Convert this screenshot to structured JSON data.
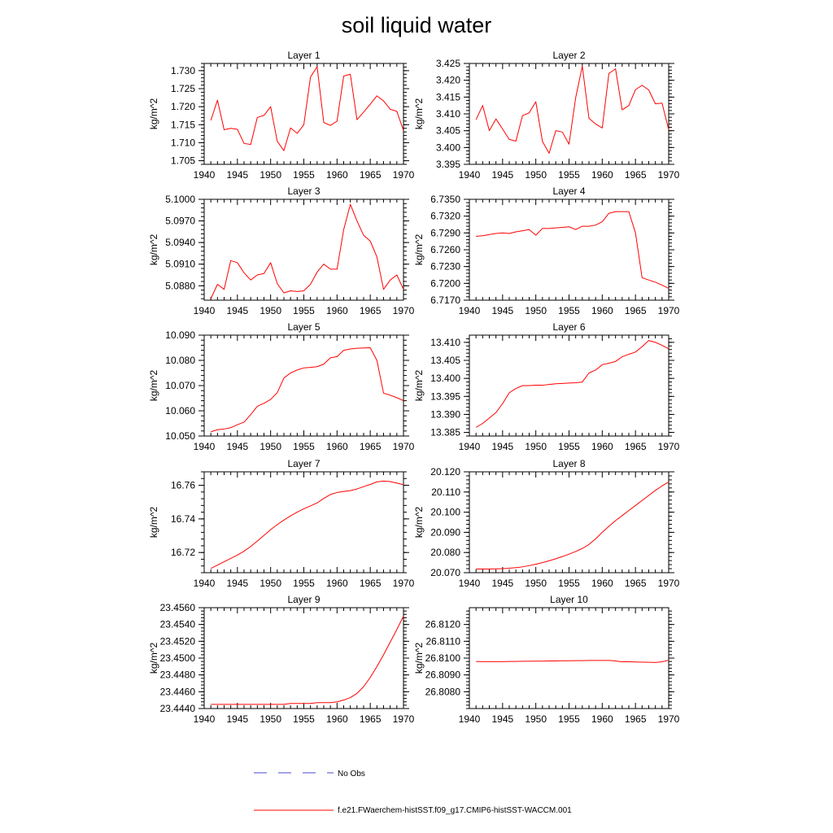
{
  "figure": {
    "title": "soil liquid water"
  },
  "chart_data": [
    {
      "type": "line",
      "title": "Layer 1",
      "ylabel": "kg/m^2",
      "xlim": [
        1940,
        1970
      ],
      "ylim": [
        1.704,
        1.732
      ],
      "xticks": [
        1940,
        1945,
        1950,
        1955,
        1960,
        1965,
        1970
      ],
      "yticks": [
        1.705,
        1.71,
        1.715,
        1.72,
        1.725,
        1.73
      ],
      "yticklabels": [
        "1.705",
        "1.710",
        "1.715",
        "1.720",
        "1.725",
        "1.730"
      ],
      "x": [
        1941,
        1942,
        1943,
        1944,
        1945,
        1946,
        1947,
        1948,
        1949,
        1950,
        1951,
        1952,
        1953,
        1954,
        1955,
        1956,
        1957,
        1958,
        1959,
        1960,
        1961,
        1962,
        1963,
        1964,
        1965,
        1966,
        1967,
        1968,
        1969,
        1970
      ],
      "series": [
        {
          "name": "f.e21.FWaerchem-histSST.f09_g17.CMIP6-histSST-WACCM.001",
          "color": "#ff0000",
          "values": [
            1.7162,
            1.7218,
            1.7136,
            1.714,
            1.7137,
            1.7098,
            1.7095,
            1.717,
            1.7176,
            1.72,
            1.7104,
            1.7078,
            1.7141,
            1.7126,
            1.715,
            1.7282,
            1.7311,
            1.7156,
            1.7148,
            1.716,
            1.7285,
            1.729,
            1.7164,
            1.7185,
            1.7207,
            1.723,
            1.7216,
            1.7193,
            1.7187,
            1.7134
          ]
        }
      ]
    },
    {
      "type": "line",
      "title": "Layer 2",
      "ylabel": "kg/m^2",
      "xlim": [
        1940,
        1970
      ],
      "ylim": [
        3.395,
        3.425
      ],
      "xticks": [
        1940,
        1945,
        1950,
        1955,
        1960,
        1965,
        1970
      ],
      "yticks": [
        3.395,
        3.4,
        3.405,
        3.41,
        3.415,
        3.42,
        3.425
      ],
      "yticklabels": [
        "3.395",
        "3.400",
        "3.405",
        "3.410",
        "3.415",
        "3.420",
        "3.425"
      ],
      "x": [
        1941,
        1942,
        1943,
        1944,
        1945,
        1946,
        1947,
        1948,
        1949,
        1950,
        1951,
        1952,
        1953,
        1954,
        1955,
        1956,
        1957,
        1958,
        1959,
        1960,
        1961,
        1962,
        1963,
        1964,
        1965,
        1966,
        1967,
        1968,
        1969,
        1970
      ],
      "series": [
        {
          "name": "f.e21.FWaerchem-histSST.f09_g17.CMIP6-histSST-WACCM.001",
          "color": "#ff0000",
          "values": [
            3.4083,
            3.4125,
            3.405,
            3.4085,
            3.4055,
            3.4024,
            3.4019,
            3.4095,
            3.4103,
            3.4136,
            3.4018,
            3.3983,
            3.405,
            3.4046,
            3.401,
            3.4148,
            3.4242,
            3.4087,
            3.407,
            3.4058,
            3.422,
            3.4234,
            3.4112,
            3.4125,
            3.4172,
            3.4185,
            3.4171,
            3.413,
            3.4132,
            3.4053
          ]
        }
      ]
    },
    {
      "type": "line",
      "title": "Layer 3",
      "ylabel": "kg/m^2",
      "xlim": [
        1940,
        1970
      ],
      "ylim": [
        5.086,
        5.1
      ],
      "xticks": [
        1940,
        1945,
        1950,
        1955,
        1960,
        1965,
        1970
      ],
      "yticks": [
        5.088,
        5.091,
        5.094,
        5.097,
        5.1
      ],
      "yticklabels": [
        "5.0880",
        "5.0910",
        "5.0940",
        "5.0970",
        "5.1000"
      ],
      "x": [
        1941,
        1942,
        1943,
        1944,
        1945,
        1946,
        1947,
        1948,
        1949,
        1950,
        1951,
        1952,
        1953,
        1954,
        1955,
        1956,
        1957,
        1958,
        1959,
        1960,
        1961,
        1962,
        1963,
        1964,
        1965,
        1966,
        1967,
        1968,
        1969,
        1970
      ],
      "series": [
        {
          "name": "f.e21.FWaerchem-histSST.f09_g17.CMIP6-histSST-WACCM.001",
          "color": "#ff0000",
          "values": [
            5.0862,
            5.0882,
            5.0875,
            5.0915,
            5.0912,
            5.0898,
            5.0888,
            5.0895,
            5.0897,
            5.0912,
            5.0883,
            5.087,
            5.0873,
            5.0872,
            5.0873,
            5.0882,
            5.0899,
            5.091,
            5.0903,
            5.0903,
            5.0958,
            5.0993,
            5.097,
            5.095,
            5.0942,
            5.092,
            5.0875,
            5.0888,
            5.0895,
            5.0875
          ]
        }
      ]
    },
    {
      "type": "line",
      "title": "Layer 4",
      "ylabel": "kg/m^2",
      "xlim": [
        1940,
        1970
      ],
      "ylim": [
        6.717,
        6.735
      ],
      "xticks": [
        1940,
        1945,
        1950,
        1955,
        1960,
        1965,
        1970
      ],
      "yticks": [
        6.717,
        6.72,
        6.723,
        6.726,
        6.729,
        6.732,
        6.735
      ],
      "yticklabels": [
        "6.7170",
        "6.7200",
        "6.7230",
        "6.7260",
        "6.7290",
        "6.7320",
        "6.7350"
      ],
      "x": [
        1941,
        1942,
        1943,
        1944,
        1945,
        1946,
        1947,
        1948,
        1949,
        1950,
        1951,
        1952,
        1953,
        1954,
        1955,
        1956,
        1957,
        1958,
        1959,
        1960,
        1961,
        1962,
        1963,
        1964,
        1965,
        1966,
        1967,
        1968,
        1969,
        1970
      ],
      "series": [
        {
          "name": "f.e21.FWaerchem-histSST.f09_g17.CMIP6-histSST-WACCM.001",
          "color": "#ff0000",
          "values": [
            6.7284,
            6.7285,
            6.7287,
            6.7289,
            6.729,
            6.7289,
            6.7292,
            6.7294,
            6.7296,
            6.7286,
            6.7298,
            6.7298,
            6.7299,
            6.73,
            6.7301,
            6.7296,
            6.7302,
            6.7302,
            6.7304,
            6.731,
            6.7325,
            6.7328,
            6.7328,
            6.7328,
            6.729,
            6.721,
            6.7206,
            6.7202,
            6.7197,
            6.7191
          ]
        }
      ]
    },
    {
      "type": "line",
      "title": "Layer 5",
      "ylabel": "kg/m^2",
      "xlim": [
        1940,
        1970
      ],
      "ylim": [
        10.05,
        10.09
      ],
      "xticks": [
        1940,
        1945,
        1950,
        1955,
        1960,
        1965,
        1970
      ],
      "yticks": [
        10.05,
        10.06,
        10.07,
        10.08,
        10.09
      ],
      "yticklabels": [
        "10.050",
        "10.060",
        "10.070",
        "10.080",
        "10.090"
      ],
      "x": [
        1941,
        1942,
        1943,
        1944,
        1945,
        1946,
        1947,
        1948,
        1949,
        1950,
        1951,
        1952,
        1953,
        1954,
        1955,
        1956,
        1957,
        1958,
        1959,
        1960,
        1961,
        1962,
        1963,
        1964,
        1965,
        1966,
        1967,
        1968,
        1969,
        1970
      ],
      "series": [
        {
          "name": "f.e21.FWaerchem-histSST.f09_g17.CMIP6-histSST-WACCM.001",
          "color": "#ff0000",
          "values": [
            10.0517,
            10.0525,
            10.0528,
            10.0533,
            10.0545,
            10.0555,
            10.0585,
            10.0618,
            10.063,
            10.0645,
            10.0672,
            10.073,
            10.075,
            10.0762,
            10.077,
            10.0772,
            10.0775,
            10.0785,
            10.081,
            10.0815,
            10.084,
            10.0845,
            10.0848,
            10.0849,
            10.085,
            10.08,
            10.067,
            10.0662,
            10.0652,
            10.064
          ]
        }
      ]
    },
    {
      "type": "line",
      "title": "Layer 6",
      "ylabel": "kg/m^2",
      "xlim": [
        1940,
        1970
      ],
      "ylim": [
        13.384,
        13.412
      ],
      "xticks": [
        1940,
        1945,
        1950,
        1955,
        1960,
        1965,
        1970
      ],
      "yticks": [
        13.385,
        13.39,
        13.395,
        13.4,
        13.405,
        13.41
      ],
      "yticklabels": [
        "13.385",
        "13.390",
        "13.395",
        "13.400",
        "13.405",
        "13.410"
      ],
      "x": [
        1941,
        1942,
        1943,
        1944,
        1945,
        1946,
        1947,
        1948,
        1949,
        1950,
        1951,
        1952,
        1953,
        1954,
        1955,
        1956,
        1957,
        1958,
        1959,
        1960,
        1961,
        1962,
        1963,
        1964,
        1965,
        1966,
        1967,
        1968,
        1969,
        1970
      ],
      "series": [
        {
          "name": "f.e21.FWaerchem-histSST.f09_g17.CMIP6-histSST-WACCM.001",
          "color": "#ff0000",
          "values": [
            13.3864,
            13.3875,
            13.389,
            13.3905,
            13.393,
            13.396,
            13.3972,
            13.398,
            13.398,
            13.3981,
            13.3981,
            13.3983,
            13.3985,
            13.3986,
            13.3987,
            13.3988,
            13.399,
            13.4015,
            13.4023,
            13.4038,
            13.4042,
            13.4047,
            13.406,
            13.4067,
            13.4073,
            13.4088,
            13.4105,
            13.41,
            13.4092,
            13.4082
          ]
        }
      ]
    },
    {
      "type": "line",
      "title": "Layer 7",
      "ylabel": "kg/m^2",
      "xlim": [
        1940,
        1970
      ],
      "ylim": [
        16.708,
        16.768
      ],
      "xticks": [
        1940,
        1945,
        1950,
        1955,
        1960,
        1965,
        1970
      ],
      "yticks": [
        16.72,
        16.74,
        16.76
      ],
      "yticklabels": [
        "16.72",
        "16.74",
        "16.76"
      ],
      "x": [
        1941,
        1942,
        1943,
        1944,
        1945,
        1946,
        1947,
        1948,
        1949,
        1950,
        1951,
        1952,
        1953,
        1954,
        1955,
        1956,
        1957,
        1958,
        1959,
        1960,
        1961,
        1962,
        1963,
        1964,
        1965,
        1966,
        1967,
        1968,
        1969,
        1970
      ],
      "series": [
        {
          "name": "f.e21.FWaerchem-histSST.f09_g17.CMIP6-histSST-WACCM.001",
          "color": "#ff0000",
          "values": [
            16.7105,
            16.7125,
            16.7145,
            16.7165,
            16.7185,
            16.7208,
            16.7236,
            16.7268,
            16.7302,
            16.7336,
            16.7366,
            16.7393,
            16.7418,
            16.744,
            16.746,
            16.7477,
            16.7495,
            16.7522,
            16.7545,
            16.7557,
            16.7563,
            16.7568,
            16.7578,
            16.7592,
            16.7605,
            16.762,
            16.7625,
            16.7622,
            16.7613,
            16.7603
          ]
        }
      ]
    },
    {
      "type": "line",
      "title": "Layer 8",
      "ylabel": "kg/m^2",
      "xlim": [
        1940,
        1970
      ],
      "ylim": [
        20.07,
        20.12
      ],
      "xticks": [
        1940,
        1945,
        1950,
        1955,
        1960,
        1965,
        1970
      ],
      "yticks": [
        20.07,
        20.08,
        20.09,
        20.1,
        20.11,
        20.12
      ],
      "yticklabels": [
        "20.070",
        "20.080",
        "20.090",
        "20.100",
        "20.110",
        "20.120"
      ],
      "x": [
        1941,
        1942,
        1943,
        1944,
        1945,
        1946,
        1947,
        1948,
        1949,
        1950,
        1951,
        1952,
        1953,
        1954,
        1955,
        1956,
        1957,
        1958,
        1959,
        1960,
        1961,
        1962,
        1963,
        1964,
        1965,
        1966,
        1967,
        1968,
        1969,
        1970
      ],
      "series": [
        {
          "name": "f.e21.FWaerchem-histSST.f09_g17.CMIP6-histSST-WACCM.001",
          "color": "#ff0000",
          "values": [
            20.0718,
            20.0718,
            20.0718,
            20.0719,
            20.072,
            20.0722,
            20.0725,
            20.0729,
            20.0735,
            20.0742,
            20.075,
            20.0759,
            20.0769,
            20.078,
            20.0792,
            20.0805,
            20.082,
            20.084,
            20.0868,
            20.09,
            20.093,
            20.0958,
            20.0983,
            20.1008,
            20.1033,
            20.1058,
            20.1083,
            20.1108,
            20.113,
            20.115
          ]
        }
      ]
    },
    {
      "type": "line",
      "title": "Layer 9",
      "ylabel": "kg/m^2",
      "xlim": [
        1940,
        1970
      ],
      "ylim": [
        23.444,
        23.456
      ],
      "xticks": [
        1940,
        1945,
        1950,
        1955,
        1960,
        1965,
        1970
      ],
      "yticks": [
        23.444,
        23.446,
        23.448,
        23.45,
        23.452,
        23.454,
        23.456
      ],
      "yticklabels": [
        "23.4440",
        "23.4460",
        "23.4480",
        "23.4500",
        "23.4520",
        "23.4540",
        "23.4560"
      ],
      "x": [
        1941,
        1942,
        1943,
        1944,
        1945,
        1946,
        1947,
        1948,
        1949,
        1950,
        1951,
        1952,
        1953,
        1954,
        1955,
        1956,
        1957,
        1958,
        1959,
        1960,
        1961,
        1962,
        1963,
        1964,
        1965,
        1966,
        1967,
        1968,
        1969,
        1970
      ],
      "series": [
        {
          "name": "f.e21.FWaerchem-histSST.f09_g17.CMIP6-histSST-WACCM.001",
          "color": "#ff0000",
          "values": [
            23.4445,
            23.4445,
            23.4445,
            23.4445,
            23.4445,
            23.4445,
            23.4445,
            23.4445,
            23.4445,
            23.4445,
            23.4445,
            23.4445,
            23.4446,
            23.4446,
            23.4446,
            23.4446,
            23.4447,
            23.4447,
            23.4447,
            23.4448,
            23.445,
            23.4453,
            23.4458,
            23.4466,
            23.4477,
            23.449,
            23.4504,
            23.4519,
            23.4534,
            23.455
          ]
        }
      ]
    },
    {
      "type": "line",
      "title": "Layer 10",
      "ylabel": "kg/m^2",
      "xlim": [
        1940,
        1970
      ],
      "ylim": [
        26.807,
        26.813
      ],
      "xticks": [
        1940,
        1945,
        1950,
        1955,
        1960,
        1965,
        1970
      ],
      "yticks": [
        26.808,
        26.809,
        26.81,
        26.811,
        26.812
      ],
      "yticklabels": [
        "26.8080",
        "26.8090",
        "26.8100",
        "26.8110",
        "26.8120"
      ],
      "x": [
        1941,
        1942,
        1943,
        1944,
        1945,
        1946,
        1947,
        1948,
        1949,
        1950,
        1951,
        1952,
        1953,
        1954,
        1955,
        1956,
        1957,
        1958,
        1959,
        1960,
        1961,
        1962,
        1963,
        1964,
        1965,
        1966,
        1967,
        1968,
        1969,
        1970
      ],
      "series": [
        {
          "name": "f.e21.FWaerchem-histSST.f09_g17.CMIP6-histSST-WACCM.001",
          "color": "#ff0000",
          "values": [
            26.8098,
            26.80979,
            26.80979,
            26.80979,
            26.80979,
            26.8098,
            26.8098,
            26.80981,
            26.80981,
            26.80982,
            26.80982,
            26.80983,
            26.80983,
            26.80984,
            26.80984,
            26.80985,
            26.80985,
            26.80986,
            26.80986,
            26.80986,
            26.80986,
            26.80983,
            26.80978,
            26.80978,
            26.80977,
            26.80976,
            26.80975,
            26.80974,
            26.80978,
            26.80987
          ]
        }
      ]
    }
  ],
  "legend": {
    "entries": [
      {
        "label": "No Obs",
        "color": "#4a4ad0",
        "style": "dashed"
      },
      {
        "label": "f.e21.FWaerchem-histSST.f09_g17.CMIP6-histSST-WACCM.001",
        "color": "#ff0000",
        "style": "solid"
      }
    ]
  }
}
